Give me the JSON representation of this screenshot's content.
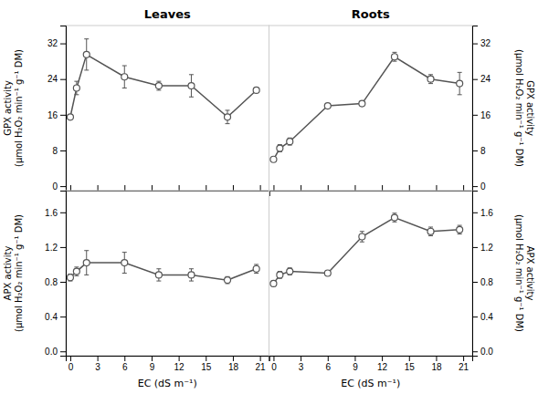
{
  "chart_data": [
    {
      "type": "line",
      "title": "Leaves",
      "x": [
        0,
        0.7,
        1.8,
        6.0,
        9.8,
        13.4,
        17.4,
        20.6
      ],
      "values": [
        15.5,
        22.0,
        29.5,
        24.5,
        22.5,
        22.5,
        15.5,
        21.5
      ],
      "errors": [
        0.5,
        1.5,
        3.5,
        2.5,
        1.0,
        2.5,
        1.5,
        0.5
      ],
      "color": "#555555",
      "marker": "o",
      "line_style": "solid",
      "xlim": [
        -0.5,
        22
      ],
      "xticks": [
        0,
        3,
        6,
        9,
        12,
        15,
        18,
        21
      ],
      "ylim": [
        -1,
        36
      ],
      "yticks": [
        0,
        8,
        16,
        24,
        32
      ],
      "ylabel": "GPX activity\n(μmol H₂O₂ min⁻¹ g⁻¹ DM)",
      "tick_labels": "y",
      "grid": false
    },
    {
      "type": "line",
      "title": "Roots",
      "x": [
        0,
        0.7,
        1.8,
        6.0,
        9.8,
        13.4,
        17.4,
        20.6
      ],
      "values": [
        6.0,
        8.5,
        10.0,
        18.0,
        18.5,
        29.0,
        24.0,
        23.0
      ],
      "errors": [
        0.5,
        0.8,
        0.8,
        0.5,
        0.5,
        1.0,
        1.0,
        2.5
      ],
      "color": "#555555",
      "marker": "o",
      "line_style": "solid",
      "xlim": [
        -0.5,
        22
      ],
      "xticks": [
        0,
        3,
        6,
        9,
        12,
        15,
        18,
        21
      ],
      "ylim": [
        -1,
        36
      ],
      "yticks": [
        0,
        8,
        16,
        24,
        32
      ],
      "ylabel": "GPX activity\n(μmol H₂O₂ min⁻¹ g⁻¹ DM)",
      "tick_labels": "y",
      "grid": false
    },
    {
      "type": "line",
      "x": [
        0,
        0.7,
        1.8,
        6.0,
        9.8,
        13.4,
        17.4,
        20.6
      ],
      "values": [
        0.85,
        0.92,
        1.02,
        1.02,
        0.88,
        0.88,
        0.82,
        0.95
      ],
      "errors": [
        0.04,
        0.05,
        0.14,
        0.12,
        0.07,
        0.07,
        0.04,
        0.05
      ],
      "color": "#555555",
      "marker": "o",
      "line_style": "solid",
      "xlim": [
        -0.5,
        22
      ],
      "xticks": [
        0,
        3,
        6,
        9,
        12,
        15,
        18,
        21
      ],
      "ylim": [
        -0.05,
        1.85
      ],
      "yticks": [
        {
          "value": 0.0,
          "label": "0.0"
        },
        0.4,
        0.8,
        1.2,
        1.6
      ],
      "xlabel": "EC (dS m⁻¹)",
      "ylabel": "APX activity\n(μmol H₂O₂ min⁻¹ g⁻¹ DM)",
      "grid": false
    },
    {
      "type": "line",
      "x": [
        0,
        0.7,
        1.8,
        6.0,
        9.8,
        13.4,
        17.4,
        20.6
      ],
      "values": [
        0.78,
        0.88,
        0.92,
        0.9,
        1.32,
        1.54,
        1.38,
        1.4
      ],
      "errors": [
        0.03,
        0.04,
        0.04,
        0.03,
        0.06,
        0.05,
        0.05,
        0.05
      ],
      "color": "#555555",
      "marker": "o",
      "line_style": "solid",
      "xlim": [
        -0.5,
        22
      ],
      "xticks": [
        0,
        3,
        6,
        9,
        12,
        15,
        18,
        21
      ],
      "ylim": [
        -0.05,
        1.85
      ],
      "yticks": [
        {
          "value": 0.0,
          "label": "0.0"
        },
        0.4,
        0.8,
        1.2,
        1.6
      ],
      "xlabel": "EC (dS m⁻¹)",
      "ylabel": "APX activity\n(μmol H₂O₂ min⁻¹ g⁻¹ DM)",
      "grid": false
    }
  ]
}
